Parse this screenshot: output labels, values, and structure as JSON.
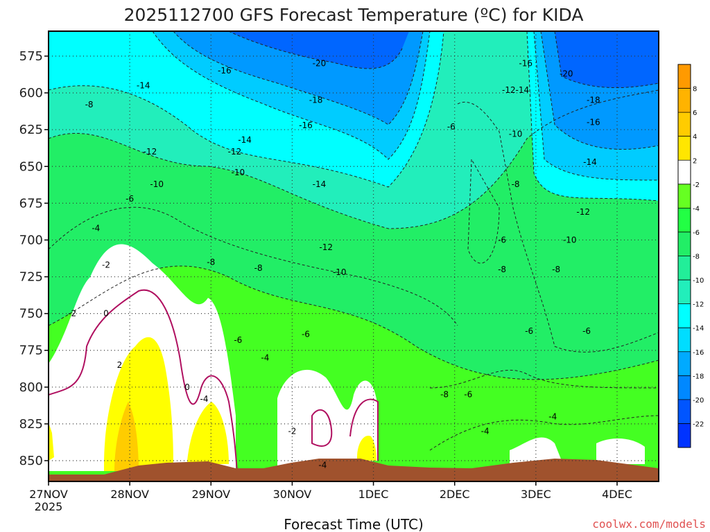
{
  "chart_data": {
    "type": "heatmap",
    "title": "2025112700 GFS Forecast Temperature (ºC) for KIDA",
    "xlabel": "Forecast Time (UTC)",
    "ylabel": "",
    "y_axis": {
      "ticks": [
        "575",
        "600",
        "625",
        "650",
        "675",
        "700",
        "725",
        "750",
        "775",
        "800",
        "825",
        "850"
      ],
      "inverted": true
    },
    "x_axis": {
      "ticks": [
        "27NOV",
        "28NOV",
        "29NOV",
        "30NOV",
        "1DEC",
        "2DEC",
        "3DEC",
        "4DEC"
      ],
      "first_tick_sub": "2025"
    },
    "grid": true,
    "colorbar": {
      "ticks": [
        "8",
        "6",
        "4",
        "2",
        "-2",
        "-4",
        "-6",
        "-8",
        "-10",
        "-12",
        "-14",
        "-16",
        "-18",
        "-20",
        "-22"
      ],
      "colors": [
        "#ff9a00",
        "#ffb300",
        "#ffcc00",
        "#ffe600",
        "#ffffff",
        "#66ff22",
        "#22ff44",
        "#22ee66",
        "#22ee99",
        "#22eebb",
        "#00ffff",
        "#00ddff",
        "#00aaff",
        "#0088ff",
        "#0055ff",
        "#0033ff"
      ]
    },
    "contour_labels": [
      {
        "text": "-16",
        "time": "27NOV+52h",
        "level": 585
      },
      {
        "text": "-20",
        "time": "27NOV+80h",
        "level": 580
      },
      {
        "text": "-14",
        "time": "27NOV+28h",
        "level": 595
      },
      {
        "text": "-8",
        "time": "27NOV+12h",
        "level": 608
      },
      {
        "text": "-18",
        "time": "27NOV+79h",
        "level": 605
      },
      {
        "text": "-14",
        "time": "27NOV+58h",
        "level": 632
      },
      {
        "text": "-16",
        "time": "27NOV+76h",
        "level": 622
      },
      {
        "text": "-12",
        "time": "27NOV+30h",
        "level": 640
      },
      {
        "text": "-12",
        "time": "27NOV+55h",
        "level": 640
      },
      {
        "text": "-10",
        "time": "27NOV+32h",
        "level": 662
      },
      {
        "text": "-10",
        "time": "27NOV+56h",
        "level": 654
      },
      {
        "text": "-14",
        "time": "27NOV+80h",
        "level": 662
      },
      {
        "text": "-6",
        "time": "27NOV+24h",
        "level": 672
      },
      {
        "text": "-4",
        "time": "27NOV+14h",
        "level": 692
      },
      {
        "text": "-2",
        "time": "27NOV+17h",
        "level": 717
      },
      {
        "text": "-12",
        "time": "27NOV+82h",
        "level": 705
      },
      {
        "text": "-10",
        "time": "27NOV+86h",
        "level": 722
      },
      {
        "text": "-8",
        "time": "27NOV+48h",
        "level": 715
      },
      {
        "text": "-8",
        "time": "27NOV+62h",
        "level": 719
      },
      {
        "text": "-2",
        "time": "27NOV+7h",
        "level": 750
      },
      {
        "text": "0",
        "time": "27NOV+17h",
        "level": 750
      },
      {
        "text": "-6",
        "time": "27NOV+56h",
        "level": 768
      },
      {
        "text": "-6",
        "time": "27NOV+76h",
        "level": 764
      },
      {
        "text": "-4",
        "time": "27NOV+64h",
        "level": 780
      },
      {
        "text": "2",
        "time": "27NOV+21h",
        "level": 785
      },
      {
        "text": "0",
        "time": "27NOV+41h",
        "level": 800
      },
      {
        "text": "-4",
        "time": "27NOV+46h",
        "level": 808
      },
      {
        "text": "-2",
        "time": "27NOV+72h",
        "level": 830
      },
      {
        "text": "-4",
        "time": "27NOV+81h",
        "level": 853
      },
      {
        "text": "-6",
        "time": "2DEC-1h",
        "level": 623
      },
      {
        "text": "-8",
        "time": "2DEC-3h",
        "level": 805
      },
      {
        "text": "-6",
        "time": "2DEC+4h",
        "level": 805
      },
      {
        "text": "-4",
        "time": "2DEC+9h",
        "level": 830
      },
      {
        "text": "-6",
        "time": "2DEC+14h",
        "level": 700
      },
      {
        "text": "-8",
        "time": "2DEC+14h",
        "level": 720
      },
      {
        "text": "-8",
        "time": "2DEC+18h",
        "level": 662
      },
      {
        "text": "-10",
        "time": "2DEC+18h",
        "level": 628
      },
      {
        "text": "-12",
        "time": "2DEC+16h",
        "level": 598
      },
      {
        "text": "-14",
        "time": "2DEC+20h",
        "level": 598
      },
      {
        "text": "-16",
        "time": "2DEC+21h",
        "level": 580
      },
      {
        "text": "-6",
        "time": "2DEC+22h",
        "level": 762
      },
      {
        "text": "-8",
        "time": "2DEC+30h",
        "level": 720
      },
      {
        "text": "-10",
        "time": "2DEC+34h",
        "level": 700
      },
      {
        "text": "-12",
        "time": "2DEC+38h",
        "level": 681
      },
      {
        "text": "-14",
        "time": "2DEC+40h",
        "level": 647
      },
      {
        "text": "-16",
        "time": "2DEC+41h",
        "level": 620
      },
      {
        "text": "-18",
        "time": "2DEC+41h",
        "level": 605
      },
      {
        "text": "-20",
        "time": "2DEC+33h",
        "level": 587
      },
      {
        "text": "-6",
        "time": "2DEC+39h",
        "level": 762
      },
      {
        "text": "-4",
        "time": "2DEC+29h",
        "level": 820
      }
    ]
  },
  "credit": "coolwx.com/models"
}
